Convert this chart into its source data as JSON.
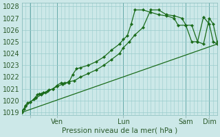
{
  "xlabel": "Pression niveau de la mer( hPa )",
  "bg_color": "#cce8e8",
  "grid_color": "#99cccc",
  "line_color": "#1a6b1a",
  "ylim": [
    1018.8,
    1028.3
  ],
  "yticks": [
    1019,
    1020,
    1021,
    1022,
    1023,
    1024,
    1025,
    1026,
    1027,
    1028
  ],
  "xlim": [
    0,
    100
  ],
  "x_tick_positions": [
    4.5,
    18,
    52,
    84,
    96
  ],
  "x_tick_labels": [
    "",
    "Ven",
    "Lun",
    "Sam",
    "Dim"
  ],
  "vline_positions": [
    4.5,
    18,
    52,
    84,
    96
  ],
  "line1_x": [
    0,
    1,
    2,
    3,
    4.5,
    6,
    7,
    8,
    9,
    10,
    11,
    12,
    14,
    16,
    18,
    20,
    22,
    24,
    26,
    28,
    30,
    34,
    38,
    42,
    46,
    50,
    52,
    54,
    56,
    58,
    62,
    66,
    70,
    74,
    78,
    80,
    84,
    87,
    90,
    93,
    96,
    98,
    100
  ],
  "line1_y": [
    1019.1,
    1019.3,
    1019.6,
    1019.8,
    1019.9,
    1020.1,
    1020.3,
    1020.5,
    1020.6,
    1020.6,
    1020.7,
    1020.7,
    1020.9,
    1021.0,
    1021.3,
    1021.5,
    1021.5,
    1021.5,
    1022.2,
    1022.7,
    1022.8,
    1023.0,
    1023.3,
    1023.7,
    1024.3,
    1024.8,
    1025.2,
    1025.5,
    1026.5,
    1027.7,
    1027.7,
    1027.5,
    1027.3,
    1027.2,
    1027.0,
    1026.4,
    1026.4,
    1025.0,
    1025.0,
    1027.1,
    1026.5,
    1025.0,
    1024.8
  ],
  "line2_x": [
    0,
    2,
    4.5,
    7,
    10,
    13,
    16,
    18,
    21,
    24,
    27,
    30,
    34,
    38,
    42,
    46,
    50,
    52,
    55,
    58,
    62,
    66,
    70,
    74,
    78,
    82,
    84,
    87,
    90,
    93,
    96,
    98,
    100
  ],
  "line2_y": [
    1019.0,
    1019.5,
    1019.9,
    1020.2,
    1020.5,
    1020.8,
    1021.0,
    1021.2,
    1021.4,
    1021.6,
    1021.7,
    1022.0,
    1022.3,
    1022.6,
    1023.0,
    1023.5,
    1024.0,
    1024.5,
    1025.0,
    1025.6,
    1026.2,
    1027.7,
    1027.7,
    1027.3,
    1027.2,
    1027.0,
    1026.4,
    1026.4,
    1025.0,
    1024.8,
    1027.0,
    1026.5,
    1025.0
  ],
  "line3_x": [
    0,
    100
  ],
  "line3_y": [
    1019.0,
    1024.8
  ]
}
